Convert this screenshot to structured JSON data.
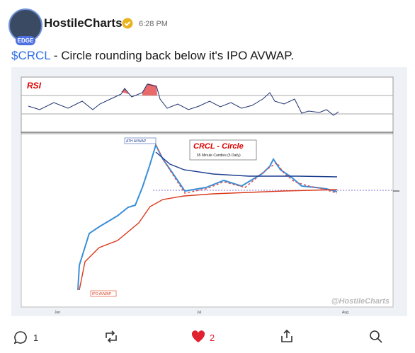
{
  "post": {
    "author": "HostileCharts",
    "time": "6:28 PM",
    "badge": "EDGE",
    "ticker": "$CRCL",
    "text": " - Circle rounding back below it's IPO AVWAP.",
    "chart": {
      "rsi_label": "RSI",
      "title": "CRCL - Circle",
      "subtitle": "65 Minute Candles (5 Daily)",
      "ath_label": "ATH AVWAP",
      "ipo_label": "IPO AVWAP",
      "watermark": "@HostileCharts",
      "x_labels": [
        "Jun",
        "Jul",
        "Aug"
      ]
    }
  },
  "actions": {
    "replies": "1",
    "likes": "2"
  }
}
